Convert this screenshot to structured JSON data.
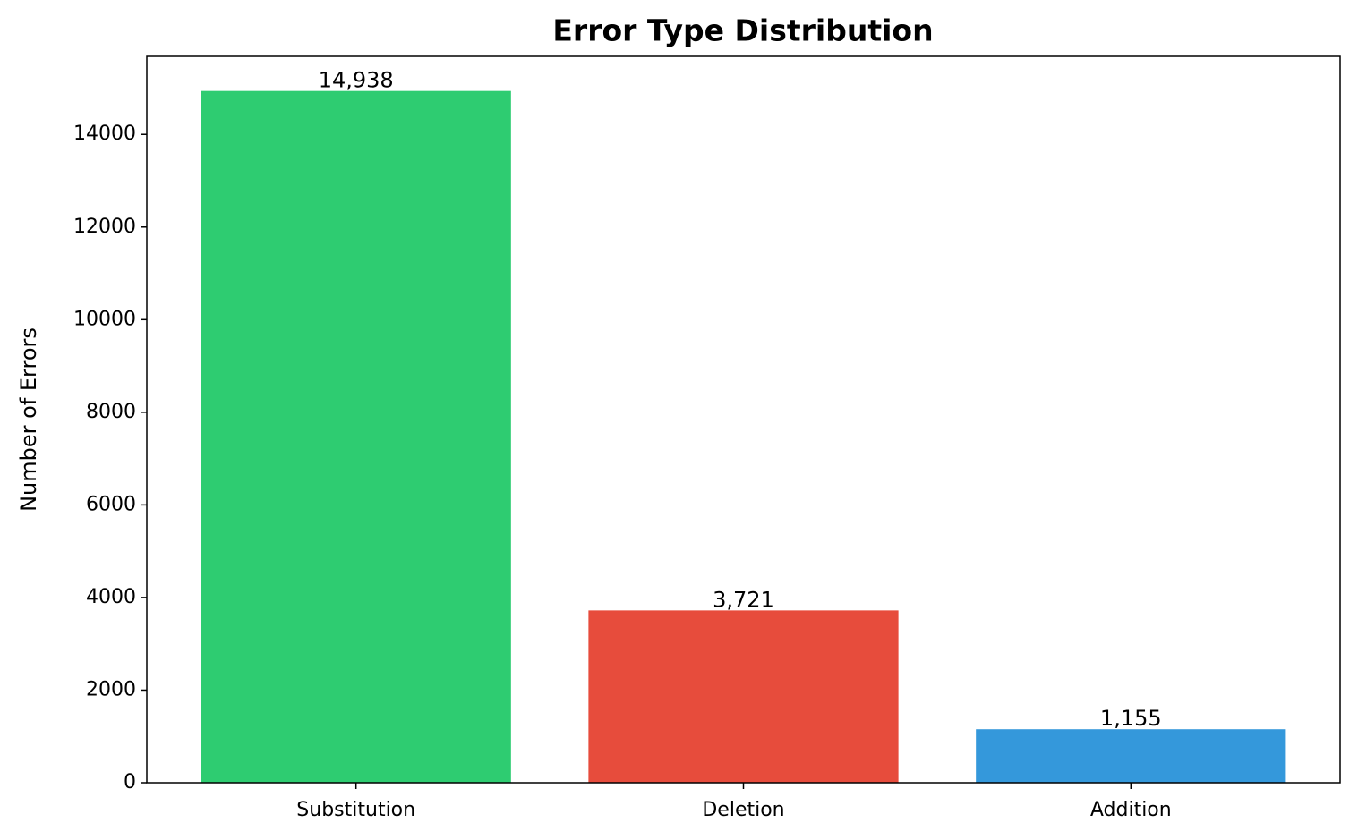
{
  "chart_data": {
    "type": "bar",
    "title": "Error Type Distribution",
    "y_label": "Number of Errors",
    "categories": [
      "Substitution",
      "Deletion",
      "Addition"
    ],
    "values": [
      14938,
      3721,
      1155
    ],
    "value_labels": [
      "14,938",
      "3,721",
      "1,155"
    ],
    "colors": [
      "#2ecc71",
      "#e74c3c",
      "#3498db"
    ],
    "ylim": [
      0,
      15685
    ],
    "yticks": [
      0,
      2000,
      4000,
      6000,
      8000,
      10000,
      12000,
      14000
    ],
    "grid": false
  }
}
